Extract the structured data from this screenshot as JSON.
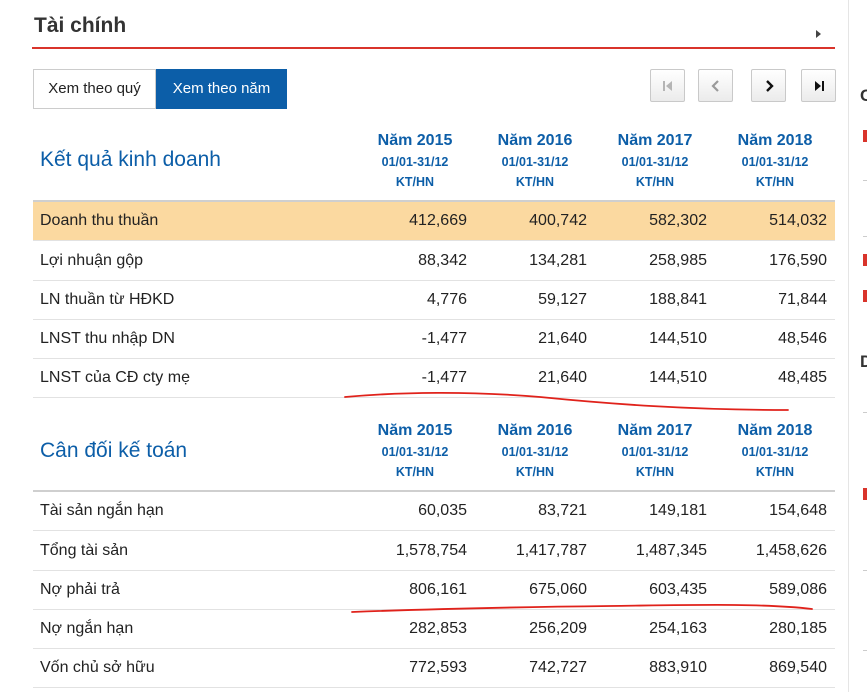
{
  "panel": {
    "title": "Tài chính"
  },
  "toggles": {
    "quarter": "Xem theo quý",
    "year": "Xem theo năm"
  },
  "columns": [
    {
      "year": "Năm 2015",
      "range": "01/01-31/12",
      "type": "KT/HN"
    },
    {
      "year": "Năm 2016",
      "range": "01/01-31/12",
      "type": "KT/HN"
    },
    {
      "year": "Năm 2017",
      "range": "01/01-31/12",
      "type": "KT/HN"
    },
    {
      "year": "Năm 2018",
      "range": "01/01-31/12",
      "type": "KT/HN"
    }
  ],
  "income": {
    "title": "Kết quả kinh doanh",
    "rows": [
      {
        "label": "Doanh thu thuần",
        "values": [
          "412,669",
          "400,742",
          "582,302",
          "514,032"
        ]
      },
      {
        "label": "Lợi nhuận gộp",
        "values": [
          "88,342",
          "134,281",
          "258,985",
          "176,590"
        ]
      },
      {
        "label": "LN thuần từ HĐKD",
        "values": [
          "4,776",
          "59,127",
          "188,841",
          "71,844"
        ]
      },
      {
        "label": "LNST thu nhập DN",
        "values": [
          "-1,477",
          "21,640",
          "144,510",
          "48,546"
        ]
      },
      {
        "label": "LNST của CĐ cty mẹ",
        "values": [
          "-1,477",
          "21,640",
          "144,510",
          "48,485"
        ]
      }
    ]
  },
  "balance": {
    "title": "Cân đối kế toán",
    "rows": [
      {
        "label": "Tài sản ngắn hạn",
        "values": [
          "60,035",
          "83,721",
          "149,181",
          "154,648"
        ]
      },
      {
        "label": "Tổng tài sản",
        "values": [
          "1,578,754",
          "1,417,787",
          "1,487,345",
          "1,458,626"
        ]
      },
      {
        "label": "Nợ phải trả",
        "values": [
          "806,161",
          "675,060",
          "603,435",
          "589,086"
        ]
      },
      {
        "label": "Nợ ngắn hạn",
        "values": [
          "282,853",
          "256,209",
          "254,163",
          "280,185"
        ]
      },
      {
        "label": "Vốn chủ sở hữu",
        "values": [
          "772,593",
          "742,727",
          "883,910",
          "869,540"
        ]
      }
    ]
  },
  "side": {
    "letter_c": "C",
    "letter_d": "D"
  },
  "colors": {
    "accent_blue": "#0c5ea8",
    "rule_red": "#d9342b",
    "highlight": "#fbd9a0"
  }
}
